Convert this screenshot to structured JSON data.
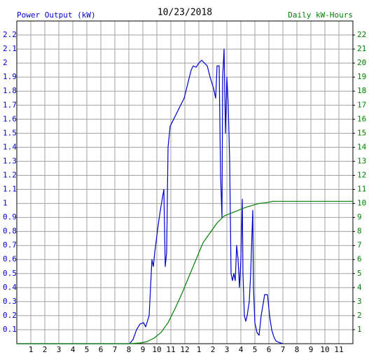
{
  "chart_data": {
    "type": "line",
    "title": "10/23/2018",
    "xlim": [
      0,
      24
    ],
    "xticks": [
      1,
      2,
      3,
      4,
      5,
      6,
      7,
      8,
      9,
      10,
      11,
      12,
      {
        "value": 13,
        "label": "1"
      },
      {
        "value": 14,
        "label": "2"
      },
      {
        "value": 15,
        "label": "3"
      },
      {
        "value": 16,
        "label": "4"
      },
      {
        "value": 17,
        "label": "5"
      },
      {
        "value": 18,
        "label": "6"
      },
      {
        "value": 19,
        "label": "7"
      },
      {
        "value": 20,
        "label": "8"
      },
      {
        "value": 21,
        "label": "9"
      },
      {
        "value": 22,
        "label": "10"
      },
      {
        "value": 23,
        "label": "11"
      }
    ],
    "ylim": [
      0,
      2.3
    ],
    "yticks": [
      0.1,
      0.2,
      0.3,
      0.4,
      0.5,
      0.6,
      0.7,
      0.8,
      0.9,
      1.0,
      1.1,
      1.2,
      1.3,
      1.4,
      1.5,
      1.6,
      1.7,
      1.8,
      1.9,
      2.0,
      2.1,
      2.2
    ],
    "y2lim": [
      0,
      23
    ],
    "y2ticks": [
      1,
      2,
      3,
      4,
      5,
      6,
      7,
      8,
      9,
      10,
      11,
      12,
      13,
      14,
      15,
      16,
      17,
      18,
      19,
      20,
      21,
      22
    ],
    "grid": true,
    "series": [
      {
        "name": "Power Output (kW)",
        "color": "#0000cc",
        "x": [
          0,
          8.05,
          8.3,
          8.55,
          8.8,
          9.05,
          9.2,
          9.45,
          9.65,
          9.75,
          9.85,
          10.1,
          10.25,
          10.5,
          10.6,
          10.7,
          10.8,
          10.95,
          11.2,
          11.45,
          11.7,
          11.95,
          12.2,
          12.45,
          12.6,
          12.8,
          13.0,
          13.2,
          13.4,
          13.6,
          13.8,
          14.05,
          14.2,
          14.3,
          14.45,
          14.55,
          14.65,
          14.7,
          14.8,
          14.9,
          15.0,
          15.1,
          15.2,
          15.3,
          15.4,
          15.5,
          15.6,
          15.7,
          15.8,
          15.9,
          16.0,
          16.1,
          16.15,
          16.25,
          16.35,
          16.45,
          16.6,
          16.7,
          16.85,
          16.9,
          17.0,
          17.15,
          17.3,
          17.45,
          17.7,
          17.9,
          18.05,
          18.2,
          18.35,
          18.5,
          18.7,
          19.0
        ],
        "values": [
          0,
          0,
          0.03,
          0.1,
          0.14,
          0.15,
          0.12,
          0.2,
          0.6,
          0.55,
          0.65,
          0.85,
          0.95,
          1.1,
          0.55,
          0.65,
          1.4,
          1.55,
          1.6,
          1.65,
          1.7,
          1.75,
          1.85,
          1.95,
          1.98,
          1.97,
          2.0,
          2.02,
          2.0,
          1.98,
          1.9,
          1.82,
          1.75,
          1.98,
          1.98,
          1.2,
          0.9,
          1.9,
          2.1,
          1.5,
          1.9,
          1.7,
          1.3,
          0.5,
          0.45,
          0.5,
          0.45,
          0.7,
          0.6,
          0.4,
          0.6,
          1.03,
          0.5,
          0.2,
          0.16,
          0.2,
          0.3,
          0.5,
          0.95,
          0.4,
          0.15,
          0.08,
          0.06,
          0.2,
          0.35,
          0.35,
          0.2,
          0.1,
          0.05,
          0.02,
          0.01,
          0
        ]
      },
      {
        "name": "Daily kW-Hours",
        "color": "#008000",
        "axis": "y2",
        "x": [
          0,
          8.05,
          8.8,
          9.3,
          9.8,
          10.3,
          10.8,
          11.3,
          11.8,
          12.3,
          12.8,
          13.3,
          13.8,
          14.3,
          14.8,
          15.3,
          15.8,
          16.3,
          16.8,
          17.3,
          17.8,
          18.3,
          24
        ],
        "values": [
          0,
          0,
          0.05,
          0.15,
          0.4,
          0.8,
          1.5,
          2.5,
          3.6,
          4.8,
          6.0,
          7.2,
          7.9,
          8.6,
          9.1,
          9.3,
          9.5,
          9.7,
          9.85,
          10.0,
          10.05,
          10.15,
          10.15
        ]
      }
    ]
  }
}
